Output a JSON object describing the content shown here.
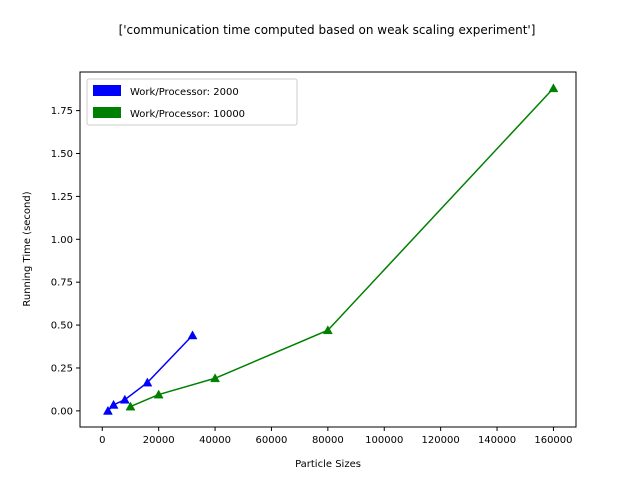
{
  "chart_data": {
    "type": "line",
    "title": "['communication time computed based on weak scaling experiment']",
    "xlabel": "Particle Sizes",
    "ylabel": "Running Time (second)",
    "xlim": [
      -7900,
      168000
    ],
    "ylim": [
      -0.094,
      1.975
    ],
    "xticks": [
      0,
      20000,
      40000,
      60000,
      80000,
      100000,
      120000,
      140000,
      160000
    ],
    "xtick_labels": [
      "0",
      "20000",
      "40000",
      "60000",
      "80000",
      "100000",
      "120000",
      "140000",
      "160000"
    ],
    "yticks": [
      0.0,
      0.25,
      0.5,
      0.75,
      1.0,
      1.25,
      1.5,
      1.75
    ],
    "ytick_labels": [
      "0.00",
      "0.25",
      "0.50",
      "0.75",
      "1.00",
      "1.25",
      "1.50",
      "1.75"
    ],
    "grid": false,
    "legend_position": "top-left",
    "marker": "triangle",
    "series": [
      {
        "name": "Work/Processor: 2000",
        "color": "#0000ff",
        "x": [
          2000,
          4000,
          8000,
          16000,
          32000
        ],
        "y": [
          0.0,
          0.035,
          0.065,
          0.165,
          0.44
        ]
      },
      {
        "name": "Work/Processor: 10000",
        "color": "#008000",
        "x": [
          10000,
          20000,
          40000,
          80000,
          160000
        ],
        "y": [
          0.025,
          0.095,
          0.19,
          0.47,
          1.88
        ]
      }
    ]
  }
}
